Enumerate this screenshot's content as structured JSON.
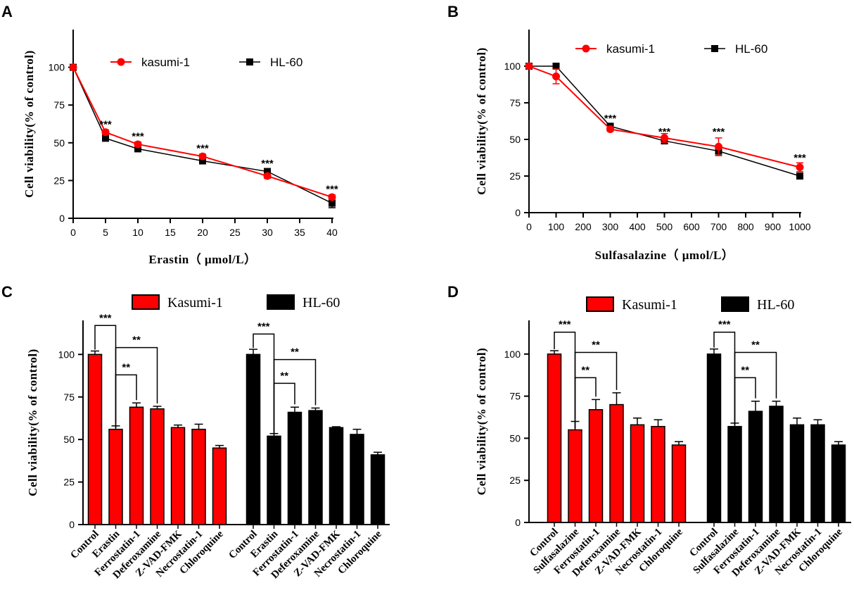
{
  "chart_data": [
    {
      "panel": "A",
      "type": "line",
      "xlabel": "Erastin（ μmol/L）",
      "ylabel": "Cell viability(% of control)",
      "x_ticks": [
        0,
        5,
        10,
        15,
        20,
        25,
        30,
        35,
        40
      ],
      "y_ticks": [
        0,
        25,
        50,
        75,
        100
      ],
      "xlim": [
        0,
        40
      ],
      "ylim": [
        0,
        125
      ],
      "x": [
        0,
        5,
        10,
        20,
        30,
        40
      ],
      "series": [
        {
          "name": "kasumi-1",
          "color": "#ff0000",
          "marker": "circle",
          "values": [
            100,
            57,
            49,
            41,
            28,
            14
          ],
          "errors": [
            0,
            1.5,
            1.5,
            1.5,
            1.5,
            1.5
          ]
        },
        {
          "name": "HL-60",
          "color": "#000000",
          "marker": "square",
          "values": [
            100,
            53,
            46,
            38,
            31,
            10
          ],
          "errors": [
            0,
            1.5,
            1.5,
            1.5,
            1.5,
            3
          ]
        }
      ],
      "annotations": [
        "***",
        "***",
        "***",
        "***",
        "***"
      ],
      "annotation_x": [
        5,
        10,
        20,
        30,
        40
      ],
      "annotation_y": [
        60,
        52,
        44,
        34,
        17
      ]
    },
    {
      "panel": "B",
      "type": "line",
      "xlabel": "Sulfasalazine（ μmol/L）",
      "ylabel": "Cell viability(% of control)",
      "x_ticks": [
        0,
        100,
        200,
        300,
        400,
        500,
        600,
        700,
        800,
        900,
        1000
      ],
      "y_ticks": [
        0,
        25,
        50,
        75,
        100
      ],
      "xlim": [
        0,
        1000
      ],
      "ylim": [
        0,
        125
      ],
      "x": [
        0,
        100,
        300,
        500,
        700,
        1000
      ],
      "series": [
        {
          "name": "kasumi-1",
          "color": "#ff0000",
          "marker": "circle",
          "values": [
            100,
            93,
            57,
            51,
            45,
            31
          ],
          "errors": [
            0,
            5,
            1.5,
            3,
            6,
            3
          ]
        },
        {
          "name": "HL-60",
          "color": "#000000",
          "marker": "square",
          "values": [
            100,
            100,
            59,
            49,
            42,
            25
          ],
          "errors": [
            0,
            0.5,
            1,
            1.5,
            3,
            1
          ]
        }
      ],
      "annotations": [
        "***",
        "***",
        "***",
        "***"
      ],
      "annotation_x": [
        300,
        500,
        700,
        1000
      ],
      "annotation_y": [
        62,
        53,
        53,
        35
      ]
    },
    {
      "panel": "C",
      "type": "bar",
      "ylabel": "Cell viability(% of control)",
      "y_ticks": [
        0,
        25,
        50,
        75,
        100
      ],
      "ylim": [
        0,
        120
      ],
      "categories": [
        "Control",
        "Erastin",
        "Ferrostatin-1",
        "Deferoxamine",
        "Z-VAD-FMK",
        "Necrostatin-1",
        "Chloroquine"
      ],
      "series": [
        {
          "name": "Kasumi-1",
          "color": "#ff0000",
          "values": [
            100,
            56,
            69,
            68,
            57,
            56,
            45
          ],
          "errors": [
            2,
            2,
            2.5,
            1.5,
            1.5,
            3,
            1.5
          ]
        },
        {
          "name": "HL-60",
          "color": "#000000",
          "values": [
            100,
            52,
            66,
            67,
            57,
            53,
            41
          ],
          "errors": [
            3,
            1.5,
            3,
            1.5,
            0.5,
            3,
            1.5
          ]
        }
      ],
      "brackets": [
        {
          "group": 0,
          "from": 0,
          "to": 1,
          "label": "***",
          "level": 117
        },
        {
          "group": 0,
          "from": 1,
          "to": 2,
          "label": "**",
          "level": 88
        },
        {
          "group": 0,
          "from": 1,
          "to": 3,
          "label": "**",
          "level": 104
        },
        {
          "group": 1,
          "from": 0,
          "to": 1,
          "label": "***",
          "level": 112
        },
        {
          "group": 1,
          "from": 1,
          "to": 2,
          "label": "**",
          "level": 83
        },
        {
          "group": 1,
          "from": 1,
          "to": 3,
          "label": "**",
          "level": 97
        }
      ]
    },
    {
      "panel": "D",
      "type": "bar",
      "ylabel": "Cell viability(% of control)",
      "y_ticks": [
        0,
        25,
        50,
        75,
        100
      ],
      "ylim": [
        0,
        120
      ],
      "categories": [
        "Control",
        "Sulfasalazine",
        "Ferrostatin-1",
        "Deferoxamine",
        "Z-VAD-FMK",
        "Necrostatin-1",
        "Chloroquine"
      ],
      "series": [
        {
          "name": "Kasumi-1",
          "color": "#ff0000",
          "values": [
            100,
            55,
            67,
            70,
            58,
            57,
            46
          ],
          "errors": [
            2,
            5,
            6,
            7,
            4,
            4,
            2
          ]
        },
        {
          "name": "HL-60",
          "color": "#000000",
          "values": [
            100,
            57,
            66,
            69,
            58,
            58,
            46
          ],
          "errors": [
            3,
            2,
            6,
            3,
            4,
            3,
            2
          ]
        }
      ],
      "brackets": [
        {
          "group": 0,
          "from": 0,
          "to": 1,
          "label": "***",
          "level": 113
        },
        {
          "group": 0,
          "from": 1,
          "to": 2,
          "label": "**",
          "level": 86
        },
        {
          "group": 0,
          "from": 1,
          "to": 3,
          "label": "**",
          "level": 101
        },
        {
          "group": 1,
          "from": 0,
          "to": 1,
          "label": "***",
          "level": 113
        },
        {
          "group": 1,
          "from": 1,
          "to": 2,
          "label": "**",
          "level": 86
        },
        {
          "group": 1,
          "from": 1,
          "to": 3,
          "label": "**",
          "level": 101
        }
      ]
    }
  ]
}
